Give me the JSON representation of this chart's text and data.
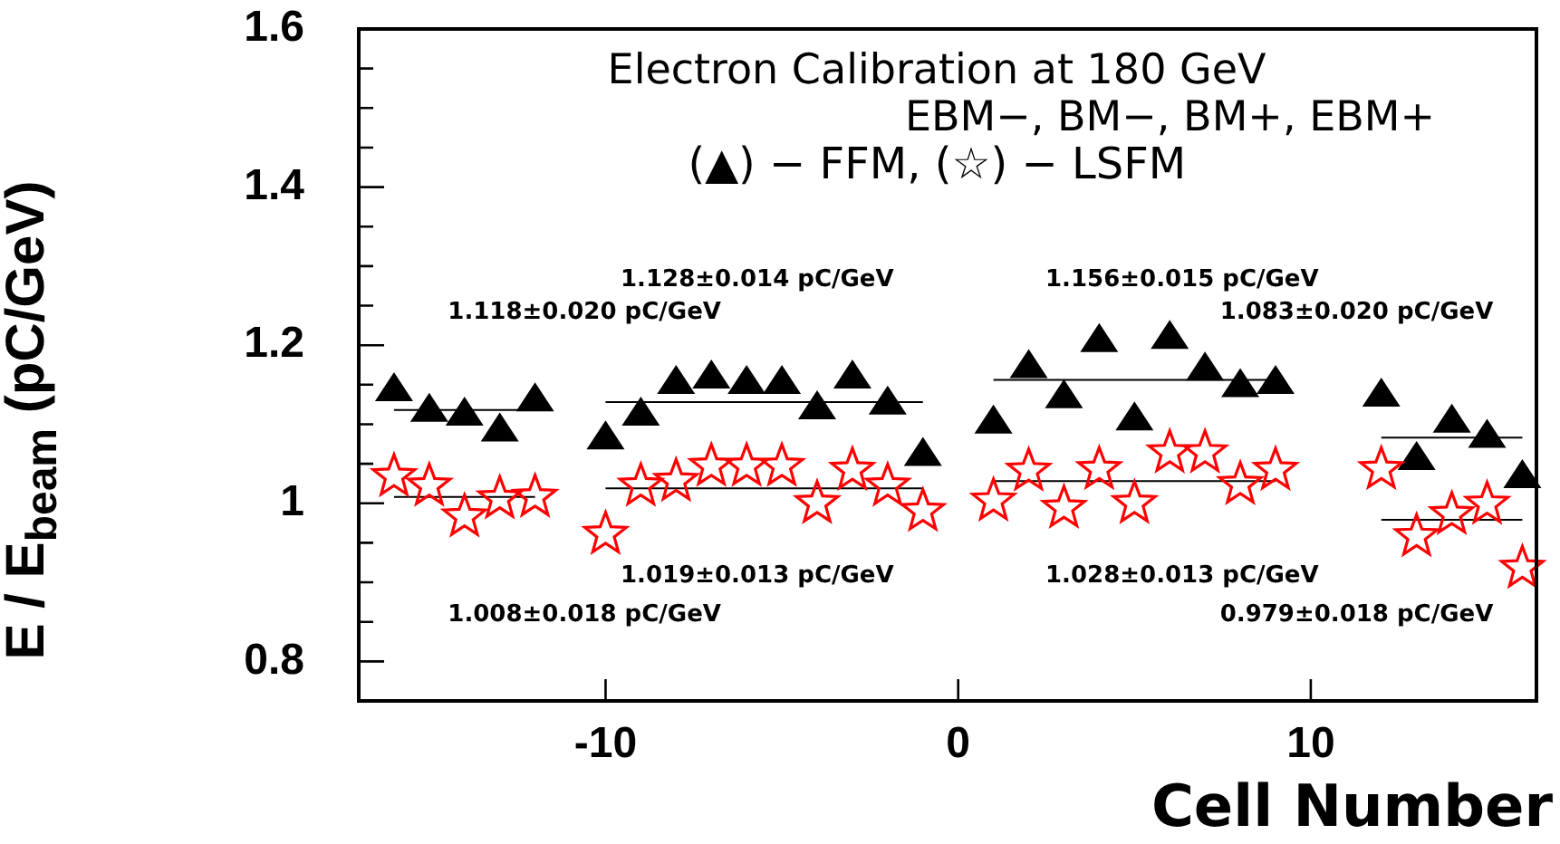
{
  "chart_data": {
    "type": "scatter",
    "title": "Electron Calibration at 180 GeV",
    "subtitle": "EBM−, BM−, BM+, EBM+",
    "xlabel": "Cell Number",
    "ylabel": "E / E$_{beam}$ (pC/GeV)",
    "xlim": [
      -17,
      16.4
    ],
    "xticks": [
      -10,
      0,
      10
    ],
    "ylim": [
      0.75,
      1.6
    ],
    "yticks": [
      {
        "value": 0.75,
        "label": null
      },
      0.8,
      {
        "value": 0.85,
        "label": null
      },
      {
        "value": 0.9,
        "label": null
      },
      {
        "value": 0.95,
        "label": null
      },
      1,
      {
        "value": 1.05,
        "label": null
      },
      {
        "value": 1.1,
        "label": null
      },
      {
        "value": 1.15,
        "label": null
      },
      1.2,
      {
        "value": 1.25,
        "label": null
      },
      {
        "value": 1.3,
        "label": null
      },
      {
        "value": 1.35,
        "label": null
      },
      1.4,
      {
        "value": 1.45,
        "label": null
      },
      {
        "value": 1.5,
        "label": null
      },
      {
        "value": 1.55,
        "label": null
      },
      1.6
    ],
    "grid": false,
    "series": [
      {
        "marker": "triangle",
        "color": "#000000",
        "x": [
          -16,
          -15,
          -14,
          -13,
          -12,
          -10,
          -9,
          -8,
          -7,
          -6,
          -5,
          -4,
          -3,
          -2,
          -1,
          1,
          2,
          3,
          4,
          5,
          6,
          7,
          8,
          9,
          12,
          13,
          14,
          15,
          16
        ],
        "values": [
          1.143,
          1.117,
          1.112,
          1.092,
          1.13,
          1.082,
          1.112,
          1.152,
          1.159,
          1.152,
          1.152,
          1.12,
          1.159,
          1.126,
          1.061,
          1.102,
          1.172,
          1.134,
          1.205,
          1.106,
          1.209,
          1.169,
          1.148,
          1.152,
          1.136,
          1.056,
          1.103,
          1.084,
          1.033
        ]
      },
      {
        "marker": "star",
        "color": "#ff0000",
        "x": [
          -16,
          -15,
          -14,
          -13,
          -12,
          -10,
          -9,
          -8,
          -7,
          -6,
          -5,
          -4,
          -3,
          -2,
          -1,
          1,
          2,
          3,
          4,
          5,
          6,
          7,
          8,
          9,
          12,
          13,
          14,
          15,
          16
        ],
        "values": [
          1.034,
          1.022,
          0.983,
          1.006,
          1.008,
          0.961,
          1.022,
          1.028,
          1.047,
          1.047,
          1.047,
          1.0,
          1.042,
          1.022,
          0.99,
          1.003,
          1.041,
          0.994,
          1.043,
          1.0,
          1.064,
          1.064,
          1.024,
          1.042,
          1.043,
          0.958,
          0.986,
          0.999,
          0.918
        ]
      },
      {
        "type": "line",
        "marker": "none",
        "color": "#000000",
        "x": [
          -16,
          -12
        ],
        "values": [
          1.118,
          1.118
        ]
      },
      {
        "type": "line",
        "marker": "none",
        "color": "#000000",
        "x": [
          -10,
          -1
        ],
        "values": [
          1.128,
          1.128
        ]
      },
      {
        "type": "line",
        "marker": "none",
        "color": "#000000",
        "x": [
          1,
          9
        ],
        "values": [
          1.156,
          1.156
        ]
      },
      {
        "type": "line",
        "marker": "none",
        "color": "#000000",
        "x": [
          12,
          16
        ],
        "values": [
          1.083,
          1.083
        ]
      },
      {
        "type": "line",
        "marker": "none",
        "color": "#000000",
        "x": [
          -16,
          -12
        ],
        "values": [
          1.008,
          1.008
        ]
      },
      {
        "type": "line",
        "marker": "none",
        "color": "#000000",
        "x": [
          -10,
          -1
        ],
        "values": [
          1.019,
          1.019
        ]
      },
      {
        "type": "line",
        "marker": "none",
        "color": "#000000",
        "x": [
          1,
          9
        ],
        "values": [
          1.028,
          1.028
        ]
      },
      {
        "type": "line",
        "marker": "none",
        "color": "#000000",
        "x": [
          12,
          16
        ],
        "values": [
          0.979,
          0.979
        ]
      }
    ],
    "annotations": [
      "1.128±0.014 pC/GeV",
      "1.118±0.020 pC/GeV",
      "1.156±0.015 pC/GeV",
      "1.083±0.020 pC/GeV",
      "1.019±0.013 pC/GeV",
      "1.008±0.018 pC/GeV",
      "1.028±0.013 pC/GeV",
      "0.979±0.018 pC/GeV",
      "(▲) − FFM, (☆) − LSFM"
    ]
  }
}
